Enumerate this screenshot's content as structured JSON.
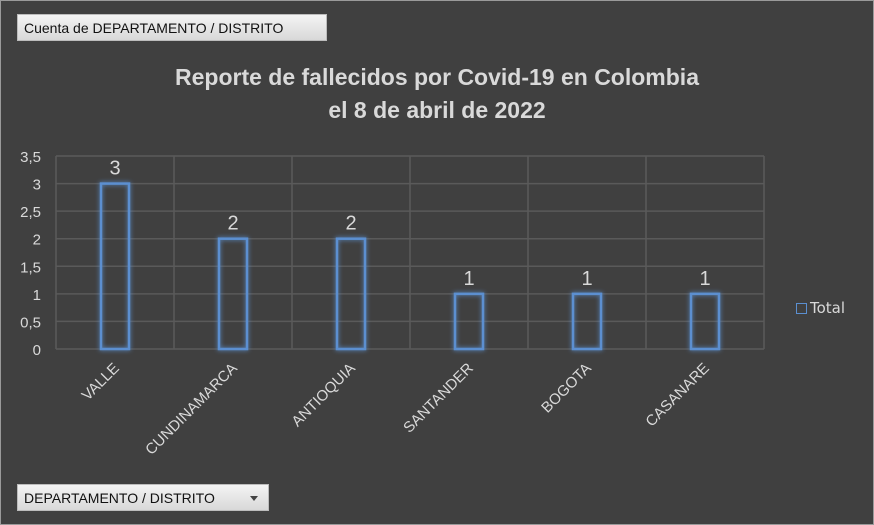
{
  "field_button": {
    "label": "Cuenta de DEPARTAMENTO / DISTRITO"
  },
  "axis_button": {
    "label": "DEPARTAMENTO / DISTRITO",
    "icon": "dropdown-caret-icon"
  },
  "chart_data": {
    "type": "bar",
    "title": [
      "Reporte de fallecidos por Covid-19 en Colombia",
      "el 8 de abril de 2022"
    ],
    "categories": [
      "VALLE",
      "CUNDINAMARCA",
      "ANTIOQUIA",
      "SANTANDER",
      "BOGOTA",
      "CASANARE"
    ],
    "series": [
      {
        "name": "Total",
        "values": [
          3,
          2,
          2,
          1,
          1,
          1
        ]
      }
    ],
    "data_labels": [
      "3",
      "2",
      "2",
      "1",
      "1",
      "1"
    ],
    "ylim": [
      0,
      3.5
    ],
    "yticks": [
      "0",
      "0,5",
      "1",
      "1,5",
      "2",
      "2,5",
      "3",
      "3,5"
    ],
    "grid": true,
    "legend": "right",
    "colors": {
      "bar_outline": "#5b8fd0",
      "background": "#404040",
      "grid": "#5a5a5a",
      "text": "#d9d9d9"
    }
  }
}
